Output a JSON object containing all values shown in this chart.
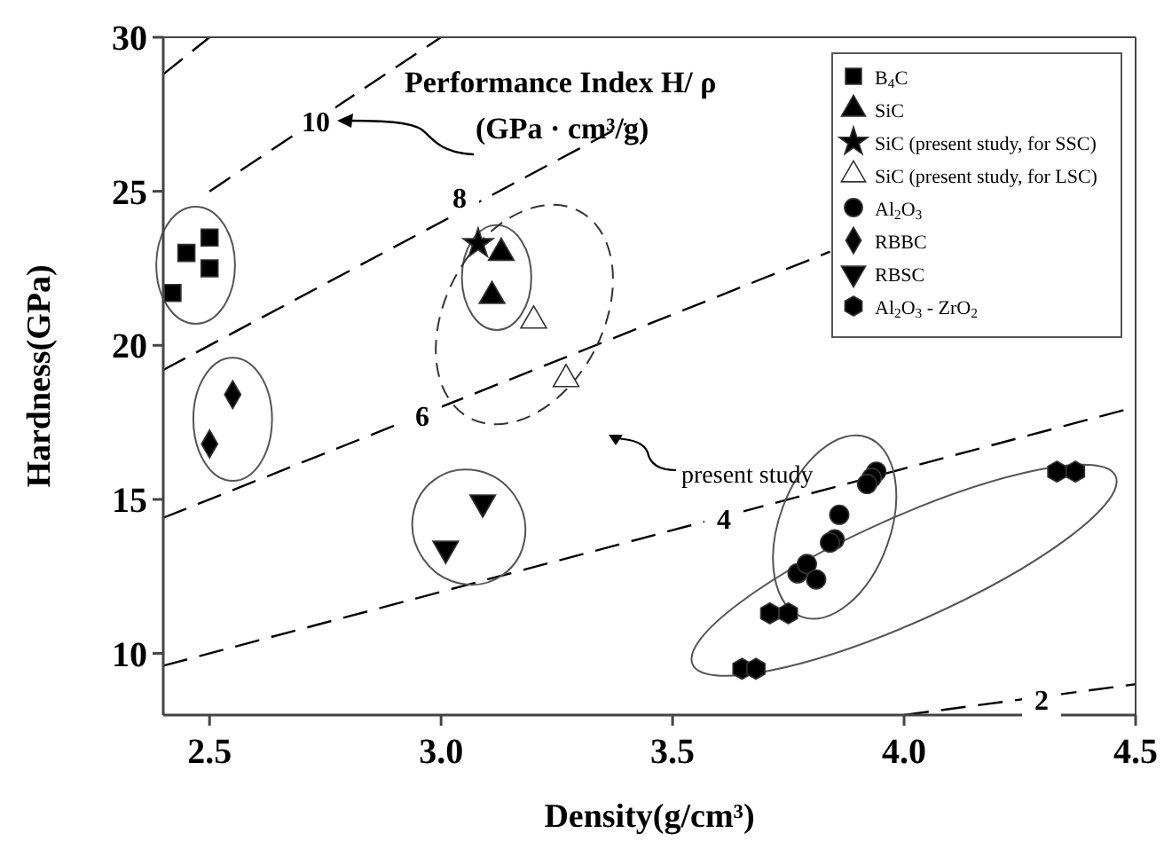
{
  "chart_data": {
    "type": "scatter",
    "xlabel": "Density(g/cm³)",
    "ylabel": "Hardness(GPa)",
    "xlim": [
      2.4,
      4.5
    ],
    "xticks": [
      2.5,
      {
        "value": 3,
        "label": "3.0"
      },
      3.5,
      {
        "value": 4,
        "label": "4.0"
      },
      4.5
    ],
    "ylim": [
      8,
      30
    ],
    "yticks": [
      10,
      15,
      20,
      25,
      30
    ],
    "grid": false,
    "legend": "top right",
    "annotations": [
      "Performance Index  H/ ρ",
      "(GPa  · cm³/g)",
      "present study",
      "10",
      "8",
      "6",
      "4",
      "2"
    ],
    "series": [
      {
        "name": "B$_{4}$C",
        "color": "#000000",
        "marker": "square",
        "x": [
          2.42,
          2.45,
          2.5,
          2.5
        ],
        "values": [
          21.7,
          23.0,
          23.5,
          22.5
        ]
      },
      {
        "name": "SiC",
        "color": "#000000",
        "marker": "triangle",
        "x": [
          3.13,
          3.11
        ],
        "values": [
          23.0,
          21.6
        ]
      },
      {
        "name": "SiC (present study, for SSC)",
        "color": "#000000",
        "marker": "star",
        "x": [
          3.08
        ],
        "values": [
          23.3
        ]
      },
      {
        "name": "SiC (present study, for LSC)",
        "color": "#ffffff",
        "marker": "triangle",
        "x": [
          3.2,
          3.27
        ],
        "values": [
          20.8,
          18.9
        ]
      },
      {
        "name": "Al$_{2}$O$_{3}$",
        "color": "#000000",
        "marker": "circle",
        "x": [
          3.94,
          3.93,
          3.92,
          3.86,
          3.85,
          3.84,
          3.77,
          3.79,
          3.81
        ],
        "values": [
          15.9,
          15.7,
          15.5,
          14.5,
          13.7,
          13.6,
          12.6,
          12.9,
          12.4
        ]
      },
      {
        "name": "RBBC",
        "color": "#000000",
        "marker": "diamond",
        "x": [
          2.55,
          2.5
        ],
        "values": [
          18.4,
          16.8
        ]
      },
      {
        "name": "RBSC",
        "color": "#000000",
        "marker": "triangle-down",
        "x": [
          3.09,
          3.01
        ],
        "values": [
          14.9,
          13.4
        ]
      },
      {
        "name": "Al$_{2}$O$_{3}$ - ZrO$_{2}$",
        "color": "#000000",
        "x": [
          3.65,
          3.68,
          3.71,
          3.75,
          4.33,
          4.37
        ],
        "values": [
          9.5,
          9.5,
          11.3,
          11.3,
          15.9,
          15.9
        ]
      },
      {
        "type": "line",
        "color": "#000000",
        "line_style": "dashed",
        "marker": "none",
        "x": [
          2.4,
          2.5
        ],
        "values": [
          28.8,
          30
        ]
      },
      {
        "type": "line",
        "color": "#000000",
        "line_style": "dashed",
        "marker": "none",
        "x": [
          2.5,
          3.0
        ],
        "values": [
          25,
          30
        ]
      },
      {
        "type": "line",
        "color": "#000000",
        "line_style": "dashed",
        "marker": "none",
        "x": [
          2.4,
          3.4
        ],
        "values": [
          19.2,
          27.2
        ]
      },
      {
        "type": "line",
        "color": "#000000",
        "line_style": "dashed",
        "marker": "none",
        "x": [
          2.4,
          3.84
        ],
        "values": [
          14.4,
          23.04
        ]
      },
      {
        "type": "line",
        "color": "#000000",
        "line_style": "dashed",
        "marker": "none",
        "x": [
          2.4,
          4.5
        ],
        "values": [
          9.6,
          18
        ]
      },
      {
        "type": "line",
        "color": "#000000",
        "line_style": "dashed",
        "marker": "none",
        "x": [
          4.0,
          4.5
        ],
        "values": [
          8,
          9
        ]
      }
    ]
  }
}
